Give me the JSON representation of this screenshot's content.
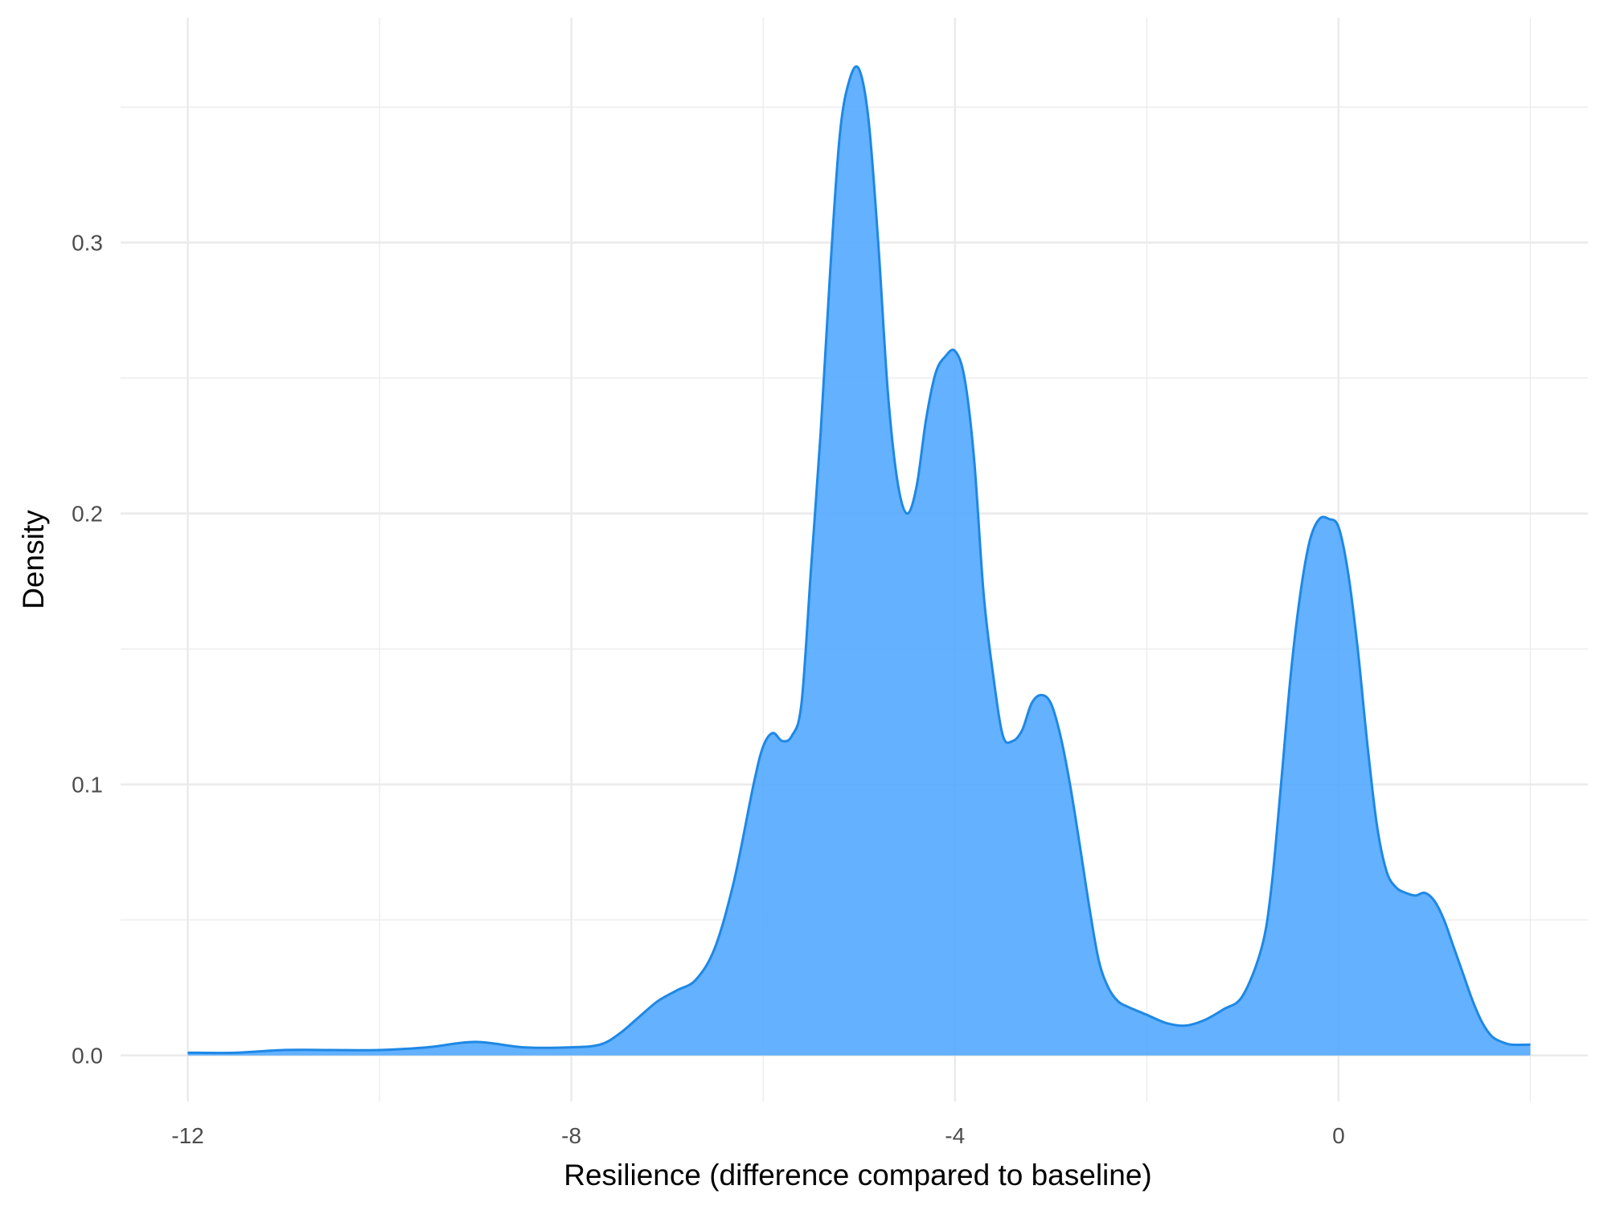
{
  "chart_data": {
    "type": "area",
    "title": "",
    "xlabel": "Resilience (difference compared to baseline)",
    "ylabel": "Density",
    "xlim": [
      -12.7,
      2.6
    ],
    "ylim": [
      -0.017,
      0.383
    ],
    "x_ticks": [
      -12,
      -8,
      -4,
      0
    ],
    "x_tick_labels": [
      "-12",
      "-8",
      "-4",
      "0"
    ],
    "x_minor_ticks": [
      -10,
      -6,
      -2,
      2
    ],
    "y_ticks": [
      0.0,
      0.1,
      0.2,
      0.3
    ],
    "y_tick_labels": [
      "0.0",
      "0.1",
      "0.2",
      "0.3"
    ],
    "y_minor_ticks": [
      0.05,
      0.15,
      0.25,
      0.35
    ],
    "grid": true,
    "legend": "none",
    "fill_color": "#4DA6FF",
    "line_color": "#1E88E5",
    "series": [
      {
        "x": [
          -12.0,
          -11.5,
          -11.0,
          -10.5,
          -10.0,
          -9.5,
          -9.0,
          -8.5,
          -8.0,
          -7.7,
          -7.5,
          -7.3,
          -7.1,
          -6.9,
          -6.7,
          -6.5,
          -6.3,
          -6.1,
          -6.0,
          -5.9,
          -5.8,
          -5.7,
          -5.6,
          -5.5,
          -5.4,
          -5.3,
          -5.2,
          -5.1,
          -5.0,
          -4.9,
          -4.8,
          -4.7,
          -4.6,
          -4.5,
          -4.4,
          -4.3,
          -4.2,
          -4.1,
          -4.0,
          -3.9,
          -3.8,
          -3.7,
          -3.6,
          -3.5,
          -3.4,
          -3.3,
          -3.2,
          -3.1,
          -3.0,
          -2.9,
          -2.8,
          -2.7,
          -2.6,
          -2.5,
          -2.4,
          -2.3,
          -2.2,
          -2.0,
          -1.8,
          -1.6,
          -1.4,
          -1.2,
          -1.0,
          -0.8,
          -0.7,
          -0.6,
          -0.5,
          -0.4,
          -0.3,
          -0.2,
          -0.1,
          0.0,
          0.1,
          0.2,
          0.3,
          0.4,
          0.5,
          0.6,
          0.7,
          0.8,
          0.9,
          1.0,
          1.1,
          1.2,
          1.3,
          1.4,
          1.5,
          1.6,
          1.7,
          1.8,
          2.0
        ],
        "y": [
          0.001,
          0.001,
          0.002,
          0.002,
          0.002,
          0.003,
          0.005,
          0.003,
          0.003,
          0.004,
          0.008,
          0.014,
          0.02,
          0.024,
          0.028,
          0.04,
          0.065,
          0.1,
          0.114,
          0.119,
          0.116,
          0.118,
          0.13,
          0.18,
          0.23,
          0.29,
          0.34,
          0.36,
          0.364,
          0.345,
          0.3,
          0.245,
          0.212,
          0.2,
          0.21,
          0.235,
          0.252,
          0.258,
          0.26,
          0.25,
          0.22,
          0.17,
          0.14,
          0.118,
          0.116,
          0.12,
          0.13,
          0.133,
          0.13,
          0.118,
          0.1,
          0.078,
          0.055,
          0.035,
          0.025,
          0.02,
          0.018,
          0.015,
          0.012,
          0.011,
          0.013,
          0.017,
          0.022,
          0.04,
          0.062,
          0.1,
          0.14,
          0.17,
          0.19,
          0.198,
          0.198,
          0.195,
          0.178,
          0.15,
          0.115,
          0.085,
          0.068,
          0.062,
          0.06,
          0.059,
          0.06,
          0.057,
          0.05,
          0.04,
          0.03,
          0.02,
          0.012,
          0.007,
          0.005,
          0.004,
          0.004
        ]
      }
    ]
  }
}
